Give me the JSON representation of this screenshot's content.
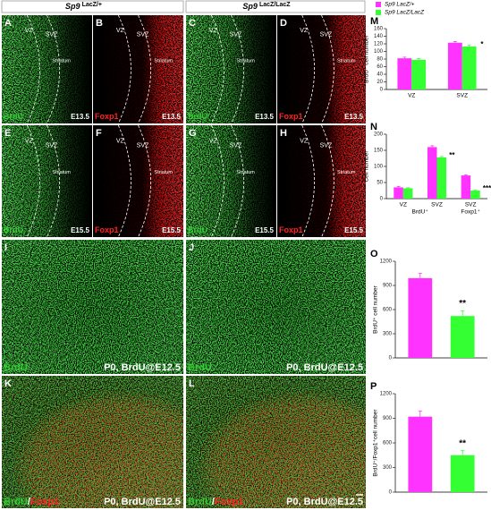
{
  "header": [
    {
      "gene": "Sp9",
      "allele": "LacZ/+"
    },
    {
      "gene": "Sp9",
      "allele": "LacZ/LacZ"
    }
  ],
  "panels": [
    {
      "letter": "A",
      "stain": [
        {
          "text": "BrdU",
          "color": "#33cc33"
        }
      ],
      "stage": "E13.5",
      "regions": [
        "VZ",
        "SVZ",
        "Striatum"
      ]
    },
    {
      "letter": "B",
      "stain": [
        {
          "text": "Foxp1",
          "color": "#ff2222"
        }
      ],
      "stage": "E13.5",
      "regions": [
        "VZ",
        "SVZ",
        "Striatum"
      ]
    },
    {
      "letter": "C",
      "stain": [
        {
          "text": "BrdU",
          "color": "#33cc33"
        }
      ],
      "stage": "E13.5",
      "regions": [
        "VZ",
        "SVZ",
        "Striatum"
      ]
    },
    {
      "letter": "D",
      "stain": [
        {
          "text": "Foxp1",
          "color": "#ff2222"
        }
      ],
      "stage": "E13.5",
      "regions": [
        "VZ",
        "SVZ",
        "Striatum"
      ]
    },
    {
      "letter": "E",
      "stain": [
        {
          "text": "BrdU",
          "color": "#33cc33"
        }
      ],
      "stage": "E15.5",
      "regions": [
        "VZ",
        "SVZ",
        "Striatum"
      ]
    },
    {
      "letter": "F",
      "stain": [
        {
          "text": "Foxp1",
          "color": "#ff2222"
        }
      ],
      "stage": "E15.5",
      "regions": [
        "VZ",
        "SVZ",
        "Striatum"
      ]
    },
    {
      "letter": "G",
      "stain": [
        {
          "text": "BrdU",
          "color": "#33cc33"
        }
      ],
      "stage": "E15.5",
      "regions": [
        "VZ",
        "SVZ",
        "Striatum"
      ]
    },
    {
      "letter": "H",
      "stain": [
        {
          "text": "Foxp1",
          "color": "#ff2222"
        }
      ],
      "stage": "E15.5",
      "regions": [
        "VZ",
        "SVZ",
        "Striatum"
      ]
    },
    {
      "letter": "I",
      "stain": [
        {
          "text": "BrdU",
          "color": "#33cc33"
        }
      ],
      "stage": "P0, BrdU@E12.5",
      "regions": []
    },
    {
      "letter": "J",
      "stain": [
        {
          "text": "BrdU",
          "color": "#33cc33"
        }
      ],
      "stage": "P0, BrdU@E12.5",
      "regions": []
    },
    {
      "letter": "K",
      "stain": [
        {
          "text": "BrdU",
          "color": "#33cc33"
        },
        {
          "text": "/",
          "color": "#ffffff"
        },
        {
          "text": "Foxp1",
          "color": "#ff2222"
        }
      ],
      "stage": "P0, BrdU@E12.5",
      "regions": []
    },
    {
      "letter": "L",
      "stain": [
        {
          "text": "BrdU",
          "color": "#33cc33"
        },
        {
          "text": "/",
          "color": "#ffffff"
        },
        {
          "text": "Foxp1",
          "color": "#ff2222"
        }
      ],
      "stage": "P0, BrdU@E12.5",
      "regions": []
    }
  ],
  "chart_data": [
    {
      "type": "bar",
      "letter": "M",
      "ylabel": "BrdU⁺ cell number",
      "categories": [
        "VZ",
        "SVZ"
      ],
      "ylim": [
        0,
        160
      ],
      "yticks": [
        0,
        20,
        40,
        60,
        80,
        100,
        120,
        140,
        160
      ],
      "series": [
        {
          "name": "Sp9 LacZ/+",
          "color": "#ff33ff",
          "values": [
            82,
            123
          ],
          "errors": [
            3,
            3
          ]
        },
        {
          "name": "Sp9 LacZ/LacZ",
          "color": "#33ff33",
          "values": [
            78,
            113
          ],
          "errors": [
            3,
            4
          ]
        }
      ],
      "annotations": [
        {
          "text": "*",
          "series": 1,
          "index": 1
        }
      ]
    },
    {
      "type": "bar",
      "letter": "N",
      "ylabel": "Cell number",
      "categories": [
        "VZ",
        "SVZ",
        "SVZ"
      ],
      "groups": [
        {
          "label": "BrdU⁺",
          "from": 0,
          "to": 1
        },
        {
          "label": "Foxp1⁺",
          "from": 2,
          "to": 2
        }
      ],
      "ylim": [
        0,
        200
      ],
      "yticks": [
        0,
        50,
        100,
        150,
        200
      ],
      "series": [
        {
          "color": "#ff33ff",
          "values": [
            35,
            160,
            72
          ],
          "errors": [
            3,
            4,
            2
          ]
        },
        {
          "color": "#33ff33",
          "values": [
            32,
            128,
            25
          ],
          "errors": [
            2,
            3,
            2
          ]
        }
      ],
      "annotations": [
        {
          "text": "**",
          "series": 1,
          "index": 1
        },
        {
          "text": "***",
          "series": 1,
          "index": 2
        }
      ]
    },
    {
      "type": "bar",
      "letter": "O",
      "ylabel": "BrdU⁺ cell number",
      "categories": [
        null
      ],
      "ylim": [
        0,
        1200
      ],
      "yticks": [
        0,
        300,
        600,
        900,
        1200
      ],
      "series": [
        {
          "color": "#ff33ff",
          "values": [
            990
          ],
          "errors": [
            60
          ]
        },
        {
          "color": "#33ff33",
          "values": [
            520
          ],
          "errors": [
            65
          ]
        }
      ],
      "annotations": [
        {
          "text": "**",
          "series": 1,
          "index": 0
        }
      ]
    },
    {
      "type": "bar",
      "letter": "P",
      "ylabel": "BrdU⁺/Foxp1⁺cell number",
      "categories": [
        null
      ],
      "ylim": [
        0,
        1200
      ],
      "yticks": [
        0,
        300,
        600,
        900,
        1200
      ],
      "series": [
        {
          "color": "#ff33ff",
          "values": [
            920
          ],
          "errors": [
            70
          ]
        },
        {
          "color": "#33ff33",
          "values": [
            450
          ],
          "errors": [
            55
          ]
        }
      ],
      "annotations": [
        {
          "text": "**",
          "series": 1,
          "index": 0
        }
      ]
    }
  ]
}
